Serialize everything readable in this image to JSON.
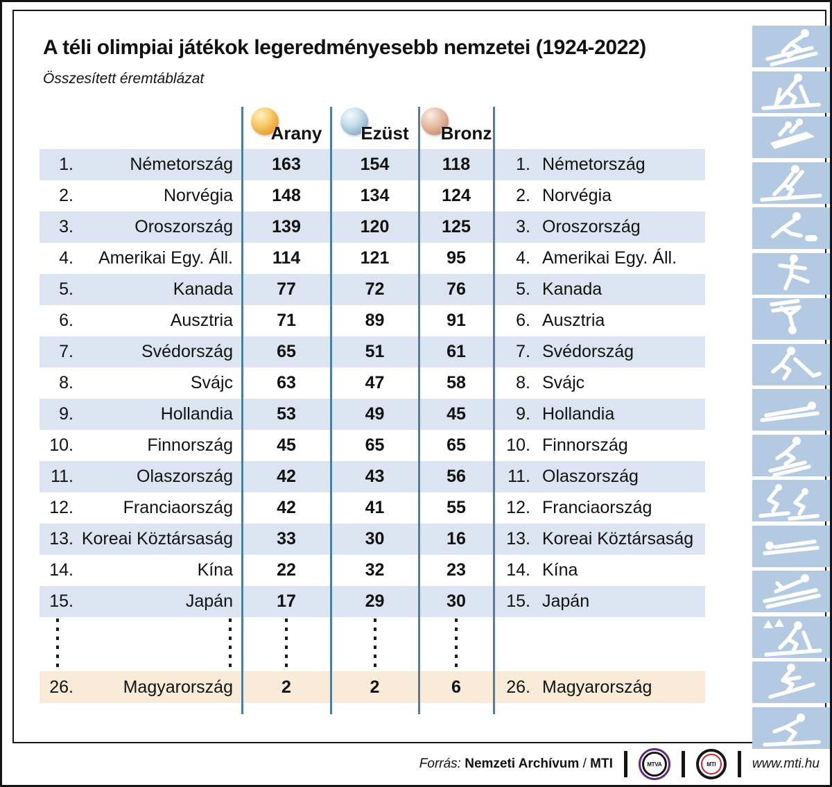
{
  "title": "A téli olimpiai játékok legeredményesebb nemzetei (1924-2022)",
  "subtitle": "Összesített éremtáblázat",
  "chart_data": {
    "type": "table",
    "columns": [
      "Arany",
      "Ezüst",
      "Bronz"
    ],
    "rows": [
      {
        "rank": "1.",
        "country": "Németország",
        "gold": "163",
        "silver": "154",
        "bronze": "118"
      },
      {
        "rank": "2.",
        "country": "Norvégia",
        "gold": "148",
        "silver": "134",
        "bronze": "124"
      },
      {
        "rank": "3.",
        "country": "Oroszország",
        "gold": "139",
        "silver": "120",
        "bronze": "125"
      },
      {
        "rank": "4.",
        "country": "Amerikai Egy. Áll.",
        "gold": "114",
        "silver": "121",
        "bronze": "95"
      },
      {
        "rank": "5.",
        "country": "Kanada",
        "gold": "77",
        "silver": "72",
        "bronze": "76"
      },
      {
        "rank": "6.",
        "country": "Ausztria",
        "gold": "71",
        "silver": "89",
        "bronze": "91"
      },
      {
        "rank": "7.",
        "country": "Svédország",
        "gold": "65",
        "silver": "51",
        "bronze": "61"
      },
      {
        "rank": "8.",
        "country": "Svájc",
        "gold": "63",
        "silver": "47",
        "bronze": "58"
      },
      {
        "rank": "9.",
        "country": "Hollandia",
        "gold": "53",
        "silver": "49",
        "bronze": "45"
      },
      {
        "rank": "10.",
        "country": "Finnország",
        "gold": "45",
        "silver": "65",
        "bronze": "65"
      },
      {
        "rank": "11.",
        "country": "Olaszország",
        "gold": "42",
        "silver": "43",
        "bronze": "56"
      },
      {
        "rank": "12.",
        "country": "Franciaország",
        "gold": "42",
        "silver": "41",
        "bronze": "55"
      },
      {
        "rank": "13.",
        "country": "Koreai Köztársaság",
        "gold": "33",
        "silver": "30",
        "bronze": "16"
      },
      {
        "rank": "14.",
        "country": "Kína",
        "gold": "22",
        "silver": "32",
        "bronze": "23"
      },
      {
        "rank": "15.",
        "country": "Japán",
        "gold": "17",
        "silver": "29",
        "bronze": "30"
      }
    ],
    "highlight_row": {
      "rank": "26.",
      "country": "Magyarország",
      "gold": "2",
      "silver": "2",
      "bronze": "6"
    }
  },
  "header": {
    "gold_label": "Arany",
    "silver_label": "Ezüst",
    "bronze_label": "Bronz"
  },
  "sidebar_icons": [
    "alpine-skiing",
    "cross-country-skiing",
    "bobsleigh",
    "biathlon",
    "curling",
    "figure-skating",
    "freestyle-aerials",
    "ice-hockey",
    "luge",
    "freestyle-skiing",
    "short-track",
    "skeleton",
    "ski-jumping",
    "nordic-combined",
    "snowboarding",
    "speed-skating"
  ],
  "footer": {
    "source_label": "Forrás:",
    "source_name": "Nemzeti Archívum",
    "source_divider": " / ",
    "source_name2": "MTI",
    "mtva_label": "MTVA",
    "mti_label": "MTI",
    "site": "www.mti.hu"
  },
  "colors": {
    "row_alt": "#dbe4f0",
    "row_highlight": "#faebd9",
    "separator": "#4d7e9e",
    "icon_bg": "#b4cae2",
    "gold": "#eca43c",
    "silver": "#8db1ca",
    "bronze": "#cf9478",
    "mtva_purple": "#5e2c7e",
    "mti_red": "#d01f26"
  }
}
